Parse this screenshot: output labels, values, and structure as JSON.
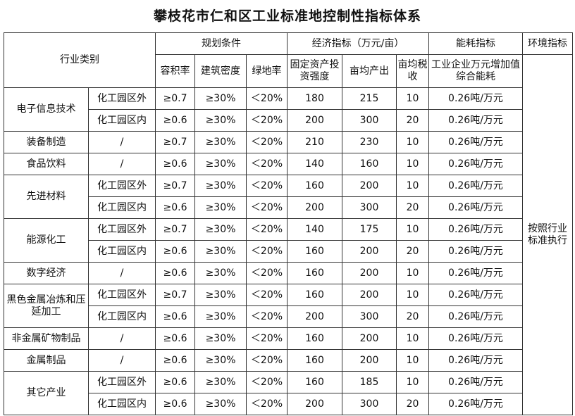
{
  "title": "攀枝花市仁和区工业标准地控制性指标体系",
  "headers": {
    "industry": "行业类别",
    "planning": "规划条件",
    "economic": "经济指标（万元/亩）",
    "energy": "能耗指标",
    "env": "环境指标",
    "plot_ratio": "容积率",
    "building_density": "建筑密度",
    "green_ratio": "绿地率",
    "fixed_investment": "固定资产投资强度",
    "output_per_mu": "亩均产出",
    "tax_per_mu": "亩均税收",
    "energy_desc": "工业企业万元增加值综合能耗"
  },
  "env_value": "按照行业标准执行",
  "rows": [
    {
      "industry": "电子信息技术",
      "sub": "化工园区外",
      "plot": "≥0.7",
      "density": "≥30%",
      "green": "＜20%",
      "invest": "180",
      "output": "215",
      "tax": "10",
      "energy": "0.26吨/万元"
    },
    {
      "industry": "",
      "sub": "化工园区内",
      "plot": "≥0.6",
      "density": "≥30%",
      "green": "＜20%",
      "invest": "200",
      "output": "300",
      "tax": "20",
      "energy": "0.26吨/万元"
    },
    {
      "industry": "装备制造",
      "sub": "/",
      "plot": "≥0.7",
      "density": "≥30%",
      "green": "＜20%",
      "invest": "210",
      "output": "230",
      "tax": "10",
      "energy": "0.26吨/万元"
    },
    {
      "industry": "食品饮料",
      "sub": "/",
      "plot": "≥0.6",
      "density": "≥30%",
      "green": "＜20%",
      "invest": "140",
      "output": "160",
      "tax": "10",
      "energy": "0.26吨/万元"
    },
    {
      "industry": "先进材料",
      "sub": "化工园区外",
      "plot": "≥0.7",
      "density": "≥30%",
      "green": "＜20%",
      "invest": "160",
      "output": "200",
      "tax": "10",
      "energy": "0.26吨/万元"
    },
    {
      "industry": "",
      "sub": "化工园区内",
      "plot": "≥0.6",
      "density": "≥30%",
      "green": "＜20%",
      "invest": "200",
      "output": "300",
      "tax": "20",
      "energy": "0.26吨/万元"
    },
    {
      "industry": "能源化工",
      "sub": "化工园区外",
      "plot": "≥0.7",
      "density": "≥30%",
      "green": "＜20%",
      "invest": "140",
      "output": "175",
      "tax": "10",
      "energy": "0.26吨/万元"
    },
    {
      "industry": "",
      "sub": "化工园区内",
      "plot": "≥0.6",
      "density": "≥30%",
      "green": "＜20%",
      "invest": "160",
      "output": "200",
      "tax": "20",
      "energy": "0.26吨/万元"
    },
    {
      "industry": "数字经济",
      "sub": "/",
      "plot": "≥0.6",
      "density": "≥30%",
      "green": "＜20%",
      "invest": "160",
      "output": "200",
      "tax": "10",
      "energy": "0.26吨/万元"
    },
    {
      "industry": "黑色金属冶炼和压延加工",
      "sub": "化工园区外",
      "plot": "≥0.7",
      "density": "≥30%",
      "green": "＜20%",
      "invest": "160",
      "output": "200",
      "tax": "10",
      "energy": "0.26吨/万元"
    },
    {
      "industry": "",
      "sub": "化工园区内",
      "plot": "≥0.6",
      "density": "≥30%",
      "green": "＜20%",
      "invest": "200",
      "output": "300",
      "tax": "20",
      "energy": "0.26吨/万元"
    },
    {
      "industry": "非金属矿物制品",
      "sub": "/",
      "plot": "≥0.6",
      "density": "≥30%",
      "green": "＜20%",
      "invest": "160",
      "output": "200",
      "tax": "10",
      "energy": "0.26吨/万元"
    },
    {
      "industry": "金属制品",
      "sub": "/",
      "plot": "≥0.6",
      "density": "≥30%",
      "green": "＜20%",
      "invest": "160",
      "output": "200",
      "tax": "10",
      "energy": "0.26吨/万元"
    },
    {
      "industry": "其它产业",
      "sub": "化工园区外",
      "plot": "≥0.6",
      "density": "≥30%",
      "green": "＜20%",
      "invest": "160",
      "output": "185",
      "tax": "10",
      "energy": "0.26吨/万元"
    },
    {
      "industry": "",
      "sub": "化工园区内",
      "plot": "≥0.6",
      "density": "≥30%",
      "green": "＜20%",
      "invest": "200",
      "output": "300",
      "tax": "20",
      "energy": "0.26吨/万元"
    }
  ]
}
